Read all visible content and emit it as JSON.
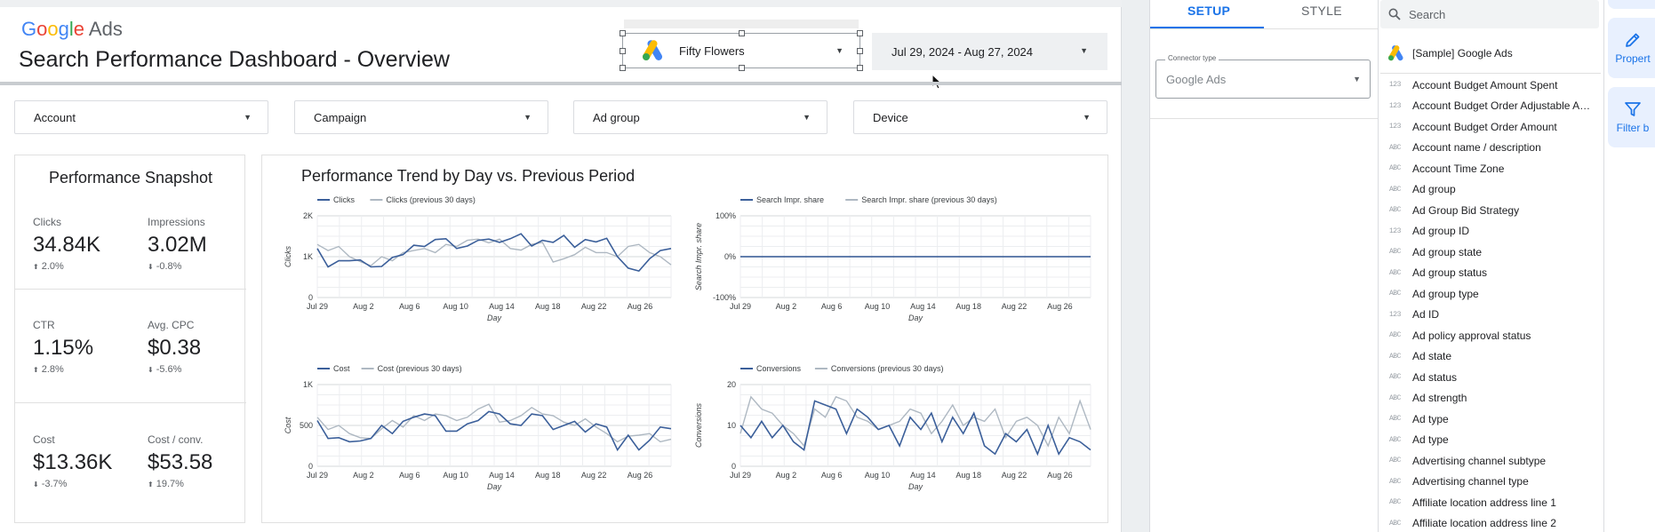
{
  "header": {
    "brand_google": [
      "G",
      "o",
      "o",
      "g",
      "l",
      "e"
    ],
    "brand_ads": "Ads",
    "title": "Search Performance Dashboard - Overview",
    "account_selector": "Fifty Flowers",
    "date_range": "Jul 29, 2024 - Aug 27, 2024"
  },
  "filters": [
    "Account",
    "Campaign",
    "Ad group",
    "Device"
  ],
  "snapshot": {
    "title": "Performance Snapshot",
    "kpis": [
      {
        "label": "Clicks",
        "value": "34.84K",
        "delta": "2.0%",
        "direction": "up"
      },
      {
        "label": "Impressions",
        "value": "3.02M",
        "delta": "-0.8%",
        "direction": "down"
      },
      {
        "label": "CTR",
        "value": "1.15%",
        "delta": "2.8%",
        "direction": "up"
      },
      {
        "label": "Avg. CPC",
        "value": "$0.38",
        "delta": "-5.6%",
        "direction": "down"
      },
      {
        "label": "Cost",
        "value": "$13.36K",
        "delta": "-3.7%",
        "direction": "down"
      },
      {
        "label": "Cost / conv.",
        "value": "$53.58",
        "delta": "19.7%",
        "direction": "up"
      }
    ]
  },
  "trend": {
    "title": "Performance Trend by Day vs. Previous Period"
  },
  "chart_data": [
    {
      "type": "line",
      "xlabel": "Day",
      "ylabel": "Clicks",
      "ylim": [
        0,
        2000
      ],
      "yticks": [
        "0",
        "1K",
        "2K"
      ],
      "xticks": [
        "Jul 29",
        "Aug 2",
        "Aug 6",
        "Aug 10",
        "Aug 14",
        "Aug 18",
        "Aug 22",
        "Aug 26"
      ],
      "series": [
        {
          "name": "Clicks",
          "values": [
            1200,
            750,
            900,
            900,
            920,
            750,
            760,
            980,
            1050,
            1280,
            1250,
            1420,
            1440,
            1200,
            1260,
            1400,
            1430,
            1350,
            1440,
            1560,
            1260,
            1400,
            1350,
            1520,
            1230,
            1420,
            1360,
            1450,
            1000,
            720,
            650,
            950,
            1150,
            1200
          ]
        },
        {
          "name": "Clicks (previous 30 days)",
          "values": [
            1300,
            1150,
            1250,
            1000,
            880,
            780,
            1000,
            900,
            1100,
            1150,
            1200,
            1100,
            1300,
            1250,
            1400,
            1430,
            1340,
            1430,
            1200,
            1160,
            1300,
            1350,
            870,
            950,
            1050,
            1230,
            1100,
            1100,
            1000,
            1250,
            1300,
            1100,
            1000,
            800
          ]
        }
      ]
    },
    {
      "type": "line",
      "xlabel": "Day",
      "ylabel": "Search Impr. share",
      "ylim": [
        -100,
        100
      ],
      "yticks": [
        "-100%",
        "0%",
        "100%"
      ],
      "xticks": [
        "Jul 29",
        "Aug 2",
        "Aug 6",
        "Aug 10",
        "Aug 14",
        "Aug 18",
        "Aug 22",
        "Aug 26"
      ],
      "series": [
        {
          "name": "Search Impr. share",
          "values": [
            0,
            0,
            0,
            0,
            0,
            0,
            0,
            0,
            0,
            0,
            0,
            0,
            0,
            0,
            0,
            0,
            0,
            0,
            0,
            0,
            0,
            0,
            0,
            0,
            0,
            0,
            0,
            0,
            0,
            0,
            0,
            0,
            0,
            0
          ]
        },
        {
          "name": "Search Impr. share (previous 30 days)",
          "values": [
            0,
            0,
            0,
            0,
            0,
            0,
            0,
            0,
            0,
            0,
            0,
            0,
            0,
            0,
            0,
            0,
            0,
            0,
            0,
            0,
            0,
            0,
            0,
            0,
            0,
            0,
            0,
            0,
            0,
            0,
            0,
            0,
            0,
            0
          ]
        }
      ]
    },
    {
      "type": "line",
      "xlabel": "Day",
      "ylabel": "Cost",
      "ylim": [
        0,
        1000
      ],
      "yticks": [
        "0",
        "500",
        "1K"
      ],
      "xticks": [
        "Jul 29",
        "Aug 2",
        "Aug 6",
        "Aug 10",
        "Aug 14",
        "Aug 18",
        "Aug 22",
        "Aug 26"
      ],
      "series": [
        {
          "name": "Cost",
          "values": [
            560,
            340,
            350,
            300,
            310,
            340,
            500,
            400,
            550,
            600,
            640,
            620,
            430,
            430,
            520,
            560,
            670,
            640,
            520,
            500,
            640,
            620,
            450,
            500,
            550,
            420,
            520,
            480,
            200,
            380,
            200,
            320,
            480,
            460
          ]
        },
        {
          "name": "Cost (previous 30 days)",
          "values": [
            600,
            450,
            500,
            400,
            350,
            340,
            460,
            560,
            480,
            620,
            560,
            640,
            620,
            560,
            600,
            700,
            760,
            540,
            560,
            620,
            720,
            640,
            620,
            540,
            500,
            580,
            480,
            400,
            300,
            370,
            380,
            400,
            300,
            330
          ]
        }
      ]
    },
    {
      "type": "line",
      "xlabel": "Day",
      "ylabel": "Conversions",
      "ylim": [
        0,
        20
      ],
      "yticks": [
        "0",
        "10",
        "20"
      ],
      "xticks": [
        "Jul 29",
        "Aug 2",
        "Aug 6",
        "Aug 10",
        "Aug 14",
        "Aug 18",
        "Aug 22",
        "Aug 26"
      ],
      "series": [
        {
          "name": "Conversions",
          "values": [
            10,
            7,
            11,
            7,
            10,
            6,
            4,
            16,
            15,
            14,
            8,
            14,
            12,
            9,
            10,
            5,
            12,
            9,
            13,
            6,
            12,
            8,
            13,
            5,
            3,
            8,
            6,
            9,
            3,
            10,
            3,
            7,
            6,
            4
          ]
        },
        {
          "name": "Conversions (previous 30 days)",
          "values": [
            8,
            17,
            14,
            13,
            10,
            8,
            5,
            14,
            12,
            17,
            16,
            12,
            11,
            9,
            10,
            11,
            14,
            13,
            8,
            11,
            15,
            10,
            12,
            11,
            14,
            7,
            11,
            12,
            10,
            5,
            12,
            8,
            16,
            9
          ]
        }
      ]
    }
  ],
  "properties": {
    "tabs": [
      "SETUP",
      "STYLE"
    ],
    "connector_label": "Connector type",
    "connector_value": "Google Ads"
  },
  "fields_panel": {
    "search_placeholder": "Search",
    "source": "[Sample] Google Ads",
    "fields": [
      {
        "type": "123",
        "name": "Account Budget Amount Spent"
      },
      {
        "type": "123",
        "name": "Account Budget Order Adjustable Am..."
      },
      {
        "type": "123",
        "name": "Account Budget Order Amount"
      },
      {
        "type": "ABC",
        "name": "Account name / description"
      },
      {
        "type": "ABC",
        "name": "Account Time Zone"
      },
      {
        "type": "ABC",
        "name": "Ad group"
      },
      {
        "type": "ABC",
        "name": "Ad Group Bid Strategy"
      },
      {
        "type": "123",
        "name": "Ad group ID"
      },
      {
        "type": "ABC",
        "name": "Ad group state"
      },
      {
        "type": "ABC",
        "name": "Ad group status"
      },
      {
        "type": "ABC",
        "name": "Ad group type"
      },
      {
        "type": "123",
        "name": "Ad ID"
      },
      {
        "type": "ABC",
        "name": "Ad policy approval status"
      },
      {
        "type": "ABC",
        "name": "Ad state"
      },
      {
        "type": "ABC",
        "name": "Ad status"
      },
      {
        "type": "ABC",
        "name": "Ad strength"
      },
      {
        "type": "ABC",
        "name": "Ad type"
      },
      {
        "type": "ABC",
        "name": "Ad type"
      },
      {
        "type": "ABC",
        "name": "Advertising channel subtype"
      },
      {
        "type": "ABC",
        "name": "Advertising channel type"
      },
      {
        "type": "ABC",
        "name": "Affiliate location address line 1"
      },
      {
        "type": "ABC",
        "name": "Affiliate location address line 2"
      }
    ]
  },
  "rail": {
    "buttons": [
      {
        "label": "Propert",
        "icon": "pencil-icon"
      },
      {
        "label": "Filter b",
        "icon": "filter-icon"
      }
    ]
  },
  "colors": {
    "current_series": "#3b5f9a",
    "previous_series": "#aeb8c2",
    "accent": "#1a73e8"
  }
}
